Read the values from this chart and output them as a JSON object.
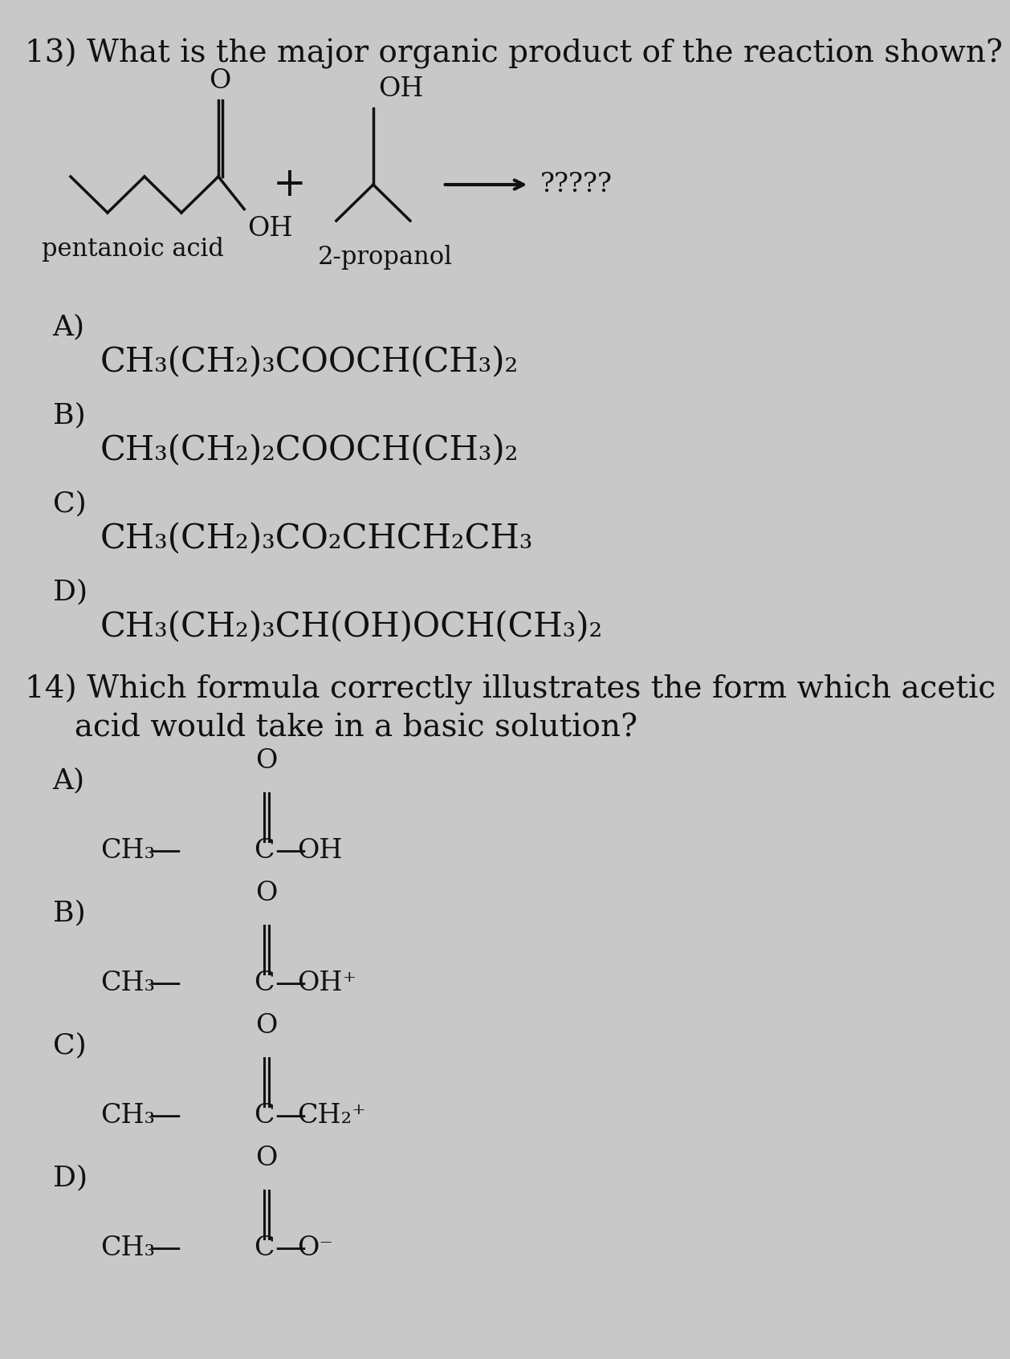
{
  "bg_color": "#c8c8c8",
  "text_color": "#111111",
  "q13_title": "13) What is the major organic product of the reaction shown?",
  "q13_reagent1_label": "pentanoic acid",
  "q13_reagent2_label": "2-propanol",
  "q13_arrow_label": "?????",
  "q13_A": "CH₃(CH₂)₃COOCH(CH₃)₂",
  "q13_B": "CH₃(CH₂)₂COOCH(CH₃)₂",
  "q13_C": "CH₃(CH₂)₃CO₂CHCH₂CH₃",
  "q13_D": "CH₃(CH₂)₃CH(OH)OCH(CH₃)₂",
  "q14_title": "14) Which formula correctly illustrates the form which acetic",
  "q14_title2": "     acid would take in a basic solution?",
  "opt_A": "A)",
  "opt_B": "B)",
  "opt_C": "C)",
  "opt_D": "D)",
  "ch3": "CH₃",
  "oh": "OH",
  "ohp": "OH⁺",
  "ch2p": "CH₂⁺",
  "om": "O⁻",
  "o_label": "O",
  "c_label": "C",
  "plus": "+",
  "emdash": "—"
}
